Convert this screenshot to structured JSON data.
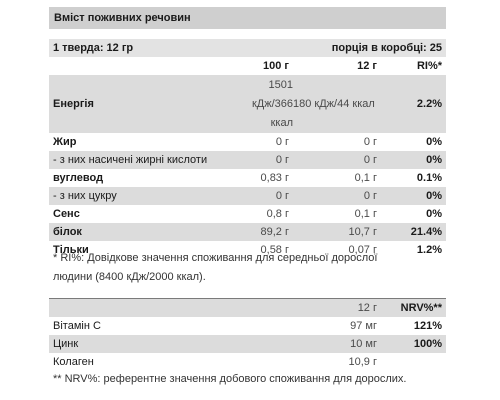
{
  "title": "Вміст поживних речовин",
  "portion": {
    "label": "1 тверда: 12 гр",
    "count": "порція в коробці: 25"
  },
  "header": {
    "col1": "100 г",
    "col2": "12 г",
    "col3": "RI%*"
  },
  "rows": [
    {
      "name": "Енергія",
      "v100_1": "1501",
      "v100_2": "кДж/366",
      "v12_mid": "180 кДж/44 ккал",
      "v100_3": "ккал",
      "ri": "2.2%"
    },
    {
      "name": "Жир",
      "v100": "0 г",
      "v12": "0 г",
      "ri": "0%"
    },
    {
      "name": "- з них насичені жирні кислоти",
      "v100": "0 г",
      "v12": "0 г",
      "ri": "0%"
    },
    {
      "name": "вуглевод",
      "v100": "0,83 г",
      "v12": "0,1 г",
      "ri": "0.1%"
    },
    {
      "name": "- з них цукру",
      "v100": "0 г",
      "v12": "0 г",
      "ri": "0%"
    },
    {
      "name": "Сенс",
      "v100": "0,8 г",
      "v12": "0,1 г",
      "ri": "0%"
    },
    {
      "name": "білок",
      "v100": "89,2 г",
      "v12": "10,7 г",
      "ri": "21.4%"
    },
    {
      "name": "Тільки",
      "v100": "0,58 г",
      "v12": "0,07 г",
      "ri": "1.2%"
    }
  ],
  "ri_note_line1": "* RI%: Довідкове значення споживання для середньої дорослої",
  "ri_note_line2": "людини (8400 кДж/2000 ккал).",
  "header2": {
    "col1": "12 г",
    "col2": "NRV%**"
  },
  "vitamins": [
    {
      "name": "Вітамін C",
      "value": "97 мг",
      "nrv": "121%"
    },
    {
      "name": "Цинк",
      "value": "10 мг",
      "nrv": "100%"
    },
    {
      "name": "Колаген",
      "value": "10,9 г",
      "nrv": ""
    }
  ],
  "nrv_note": "** NRV%: референтне значення добового споживання для дорослих."
}
